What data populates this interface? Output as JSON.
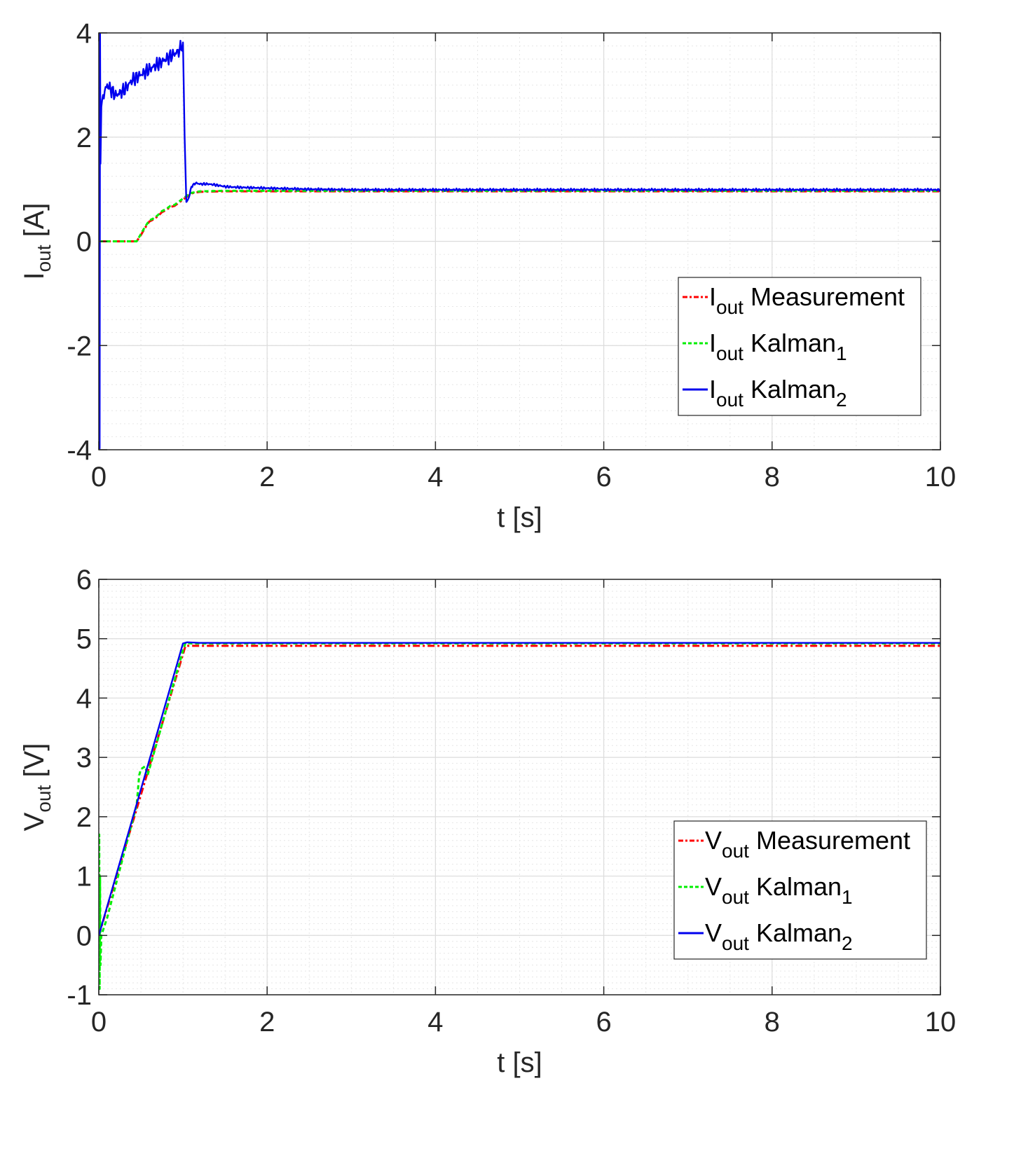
{
  "chart_data": [
    {
      "type": "line",
      "ylabel_main": "I",
      "ylabel_sub": "out",
      "ylabel_unit": " [A]",
      "xlabel": "t [s]",
      "xlim": [
        0,
        10
      ],
      "ylim": [
        -4,
        4
      ],
      "xticks": [
        0,
        2,
        4,
        6,
        8,
        10
      ],
      "yticks": [
        -4,
        -2,
        0,
        2,
        4
      ],
      "xtick_labels": [
        "0",
        "2",
        "4",
        "6",
        "8",
        "10"
      ],
      "ytick_labels": [
        "-4",
        "-2",
        "0",
        "2",
        "4"
      ],
      "grid": true,
      "minor_grid": true,
      "legend_position": "lower-right",
      "series": [
        {
          "name_main": "I",
          "name_sub": "out",
          "name_rest": " Measurement",
          "name_trail": "",
          "color": "#ff0000",
          "style": "dashdot",
          "x": [
            0,
            0.45,
            0.5,
            0.55,
            0.6,
            0.65,
            0.7,
            0.75,
            0.8,
            0.85,
            0.9,
            0.95,
            1.0,
            1.05,
            1.1,
            1.2,
            1.5,
            2,
            3,
            4,
            5,
            6,
            7,
            8,
            9,
            10
          ],
          "y": [
            0,
            0,
            0.12,
            0.26,
            0.38,
            0.42,
            0.48,
            0.56,
            0.6,
            0.66,
            0.68,
            0.74,
            0.8,
            0.86,
            0.92,
            0.95,
            0.96,
            0.96,
            0.96,
            0.96,
            0.96,
            0.96,
            0.96,
            0.96,
            0.96,
            0.96
          ]
        },
        {
          "name_main": "I",
          "name_sub": "out",
          "name_rest": " Kalman",
          "name_trail": "1",
          "color": "#00ee00",
          "style": "dashed",
          "x": [
            0,
            0.45,
            0.5,
            0.55,
            0.6,
            0.65,
            0.7,
            0.75,
            0.8,
            0.85,
            0.9,
            0.95,
            1.0,
            1.05,
            1.1,
            1.2,
            1.5,
            2,
            3,
            4,
            5,
            6,
            7,
            8,
            9,
            10
          ],
          "y": [
            0,
            0,
            0.14,
            0.28,
            0.4,
            0.44,
            0.5,
            0.58,
            0.62,
            0.68,
            0.7,
            0.76,
            0.82,
            0.88,
            0.93,
            0.96,
            0.97,
            0.97,
            0.97,
            0.97,
            0.97,
            0.97,
            0.97,
            0.97,
            0.97,
            0.97
          ]
        },
        {
          "name_main": "I",
          "name_sub": "out",
          "name_rest": " Kalman",
          "name_trail": "2",
          "color": "#0000ee",
          "style": "solid",
          "x": [
            0,
            0.01,
            0.015,
            0.02,
            0.03,
            0.05,
            0.1,
            0.2,
            0.3,
            0.4,
            0.5,
            0.6,
            0.7,
            0.8,
            0.9,
            0.95,
            1.0,
            1.02,
            1.04,
            1.06,
            1.08,
            1.1,
            1.15,
            1.2,
            1.3,
            1.4,
            1.5,
            1.6,
            1.8,
            2.0,
            2.5,
            3,
            4,
            5,
            6,
            7,
            8,
            9,
            10
          ],
          "y": [
            0,
            -4,
            4,
            1.5,
            2.6,
            2.8,
            3.0,
            2.8,
            2.9,
            3.1,
            3.2,
            3.3,
            3.4,
            3.5,
            3.6,
            3.65,
            3.8,
            2.0,
            0.75,
            0.8,
            0.9,
            1.05,
            1.12,
            1.1,
            1.1,
            1.08,
            1.05,
            1.04,
            1.03,
            1.02,
            1.0,
            0.99,
            0.99,
            0.99,
            0.99,
            0.99,
            0.99,
            0.99,
            0.99
          ],
          "noise": 0.05
        }
      ]
    },
    {
      "type": "line",
      "ylabel_main": "V",
      "ylabel_sub": "out",
      "ylabel_unit": " [V]",
      "xlabel": "t [s]",
      "xlim": [
        0,
        10
      ],
      "ylim": [
        -1,
        6
      ],
      "xticks": [
        0,
        2,
        4,
        6,
        8,
        10
      ],
      "yticks": [
        -1,
        0,
        1,
        2,
        3,
        4,
        5,
        6
      ],
      "xtick_labels": [
        "0",
        "2",
        "4",
        "6",
        "8",
        "10"
      ],
      "ytick_labels": [
        "-1",
        "0",
        "1",
        "2",
        "3",
        "4",
        "5",
        "6"
      ],
      "grid": true,
      "minor_grid": true,
      "legend_position": "lower-right",
      "series": [
        {
          "name_main": "V",
          "name_sub": "out",
          "name_rest": " Measurement",
          "name_trail": "",
          "color": "#ff0000",
          "style": "dashdot",
          "x": [
            0,
            1.03,
            1.1,
            2,
            4,
            6,
            8,
            10
          ],
          "y": [
            0,
            4.88,
            4.88,
            4.88,
            4.88,
            4.88,
            4.88,
            4.88
          ]
        },
        {
          "name_main": "V",
          "name_sub": "out",
          "name_rest": " Kalman",
          "name_trail": "1",
          "color": "#00ee00",
          "style": "dashed",
          "x": [
            0,
            0.005,
            0.01,
            0.015,
            0.02,
            0.03,
            0.1,
            0.45,
            0.48,
            0.5,
            0.55,
            0.58,
            0.6,
            1.0,
            1.03,
            1.1,
            2,
            4,
            6,
            8,
            10
          ],
          "y": [
            0,
            1.7,
            -0.9,
            1.0,
            -0.5,
            0.0,
            0.3,
            2.2,
            2.7,
            2.8,
            2.85,
            2.7,
            2.8,
            4.8,
            4.93,
            4.92,
            4.92,
            4.92,
            4.92,
            4.92,
            4.92
          ]
        },
        {
          "name_main": "V",
          "name_sub": "out",
          "name_rest": " Kalman",
          "name_trail": "2",
          "color": "#0000ee",
          "style": "solid",
          "x": [
            0,
            1.0,
            1.05,
            1.2,
            2,
            4,
            6,
            8,
            10
          ],
          "y": [
            0,
            4.92,
            4.94,
            4.93,
            4.93,
            4.93,
            4.93,
            4.93,
            4.93
          ]
        }
      ]
    }
  ]
}
